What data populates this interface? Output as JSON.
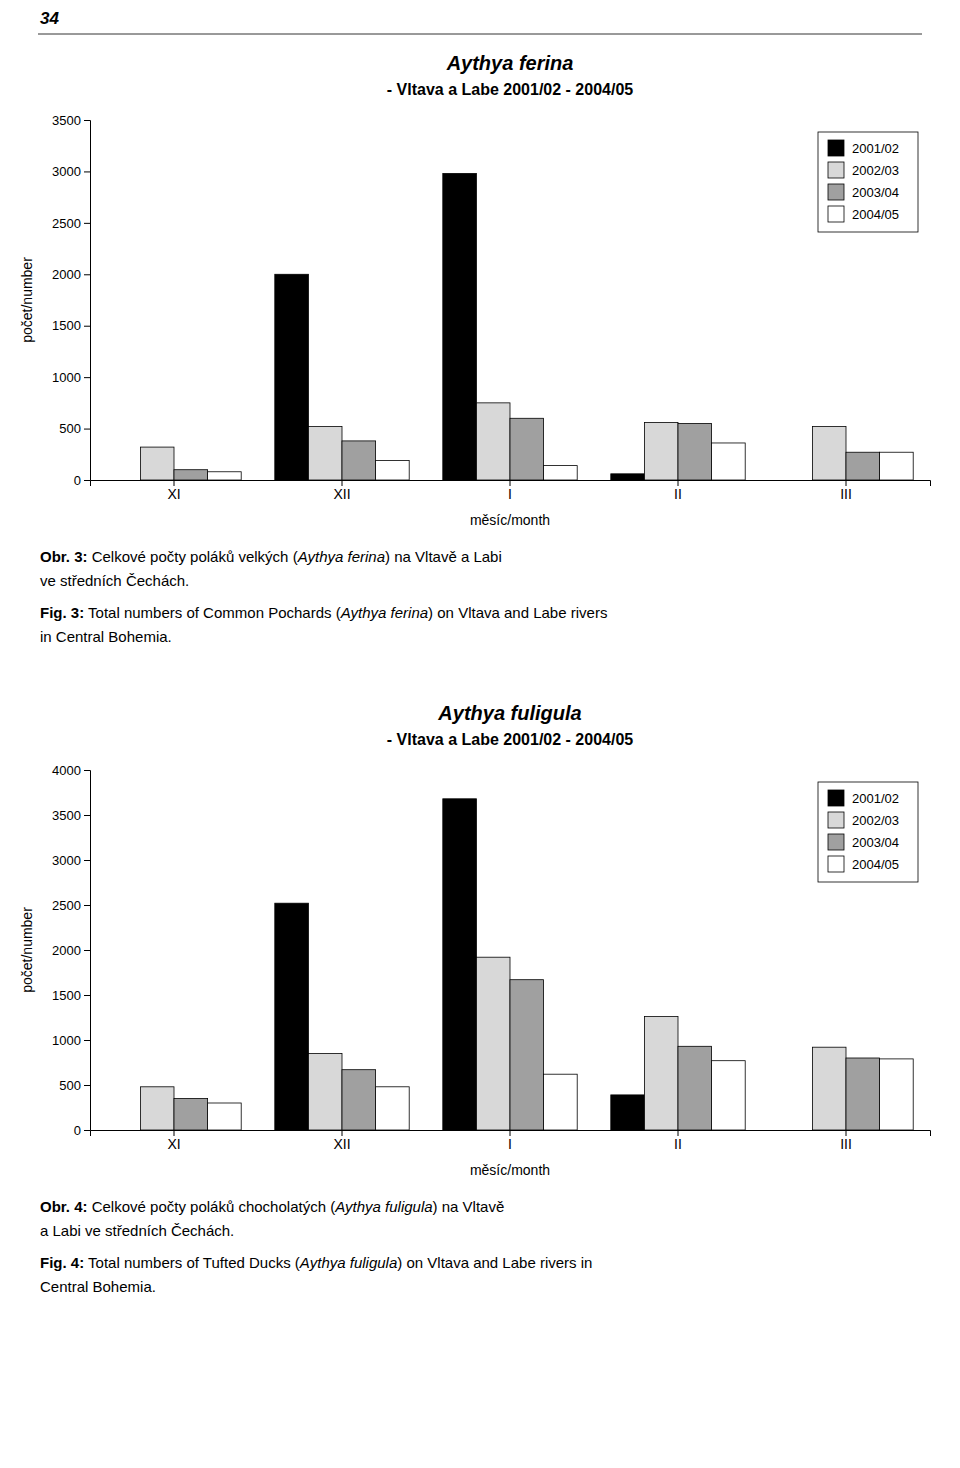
{
  "annotations": [
    "34"
  ],
  "chart_data": [
    {
      "type": "bar",
      "title": "Aythya ferina",
      "subtitle": "- Vltava a Labe 2001/02 - 2004/05",
      "x_label": "měsíc/month",
      "y_label": "počet/number",
      "categories": [
        "XI",
        "XII",
        "I",
        "II",
        "III"
      ],
      "series": [
        {
          "name": "2001/02",
          "color": "#000000",
          "values": [
            0,
            2000,
            2980,
            60,
            0
          ]
        },
        {
          "name": "2002/03",
          "color": "#d8d8d8",
          "values": [
            320,
            520,
            750,
            560,
            520
          ]
        },
        {
          "name": "2003/04",
          "color": "#a0a0a0",
          "values": [
            100,
            380,
            600,
            550,
            270
          ]
        },
        {
          "name": "2004/05",
          "color": "#ffffff",
          "values": [
            80,
            190,
            140,
            360,
            270
          ]
        }
      ],
      "ylim": [
        0,
        3500
      ],
      "yticks": [
        0,
        500,
        1000,
        1500,
        2000,
        2500,
        3000,
        3500
      ],
      "grid": false,
      "legend": "upper right",
      "annotations": [
        "Obr. 3: Celkové počty poláků velkých (Aythya ferina) na Vltavě a Labi",
        "ve středních Čechách.",
        "Fig. 3: Total numbers of Common Pochards (Aythya ferina) on Vltava and Labe rivers",
        "in Central Bohemia."
      ]
    },
    {
      "type": "bar",
      "title": "Aythya fuligula",
      "subtitle": "- Vltava a Labe 2001/02 - 2004/05",
      "x_label": "měsíc/month",
      "y_label": "počet/number",
      "categories": [
        "XI",
        "XII",
        "I",
        "II",
        "III"
      ],
      "series": [
        {
          "name": "2001/02",
          "color": "#000000",
          "values": [
            0,
            2520,
            3680,
            390,
            0
          ]
        },
        {
          "name": "2002/03",
          "color": "#d8d8d8",
          "values": [
            480,
            850,
            1920,
            1260,
            920
          ]
        },
        {
          "name": "2003/04",
          "color": "#a0a0a0",
          "values": [
            350,
            670,
            1670,
            930,
            800
          ]
        },
        {
          "name": "2004/05",
          "color": "#ffffff",
          "values": [
            300,
            480,
            620,
            770,
            790
          ]
        }
      ],
      "ylim": [
        0,
        4000
      ],
      "yticks": [
        0,
        500,
        1000,
        1500,
        2000,
        2500,
        3000,
        3500,
        4000
      ],
      "grid": false,
      "legend": "upper right",
      "annotations": [
        "Obr. 4: Celkové počty poláků chocholatých (Aythya fuligula) na Vltavě",
        "a Labi ve středních Čechách.",
        "Fig. 4: Total numbers of Tufted Ducks (Aythya fuligula) on Vltava and Labe rivers in",
        "Central Bohemia."
      ]
    }
  ]
}
